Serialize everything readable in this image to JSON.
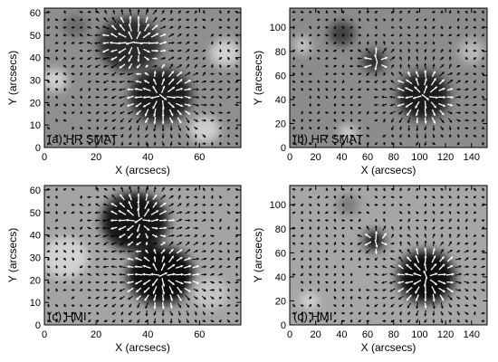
{
  "figure": {
    "panels": [
      {
        "id": "a",
        "label": "(a) HR SMAT",
        "xlabel": "X (arcsecs)",
        "ylabel": "Y (arcsecs)",
        "xlim": [
          0,
          76
        ],
        "ylim": [
          0,
          62
        ],
        "xticks": [
          0,
          20,
          40,
          60
        ],
        "yticks": [
          0,
          10,
          20,
          30,
          40,
          50,
          60
        ],
        "background": "#8f8f8f",
        "blobs": [
          {
            "x": 45,
            "y": 23,
            "r": 12,
            "tone": "#1e1e1e"
          },
          {
            "x": 33,
            "y": 46,
            "r": 12,
            "tone": "#2a2a2a"
          },
          {
            "x": 62,
            "y": 8,
            "r": 6,
            "tone": "#cfcfcf"
          },
          {
            "x": 70,
            "y": 42,
            "r": 6,
            "tone": "#d0d0d0"
          },
          {
            "x": 12,
            "y": 54,
            "r": 5,
            "tone": "#6a6a6a"
          },
          {
            "x": 4,
            "y": 30,
            "r": 5,
            "tone": "#d0d0d0"
          }
        ],
        "vector_sources": [
          {
            "x": 45,
            "y": 23,
            "r": 12
          },
          {
            "x": 35,
            "y": 47,
            "r": 11
          }
        ]
      },
      {
        "id": "b",
        "label": "(b) HR SMAT",
        "xlabel": "X (arcsecs)",
        "ylabel": "Y (arcsecs)",
        "xlim": [
          0,
          152
        ],
        "ylim": [
          0,
          116
        ],
        "xticks": [
          0,
          20,
          40,
          60,
          80,
          100,
          120,
          140
        ],
        "yticks": [
          0,
          20,
          40,
          60,
          80,
          100
        ],
        "background": "#8c8c8c",
        "blobs": [
          {
            "x": 103,
            "y": 43,
            "r": 20,
            "tone": "#1c1c1c"
          },
          {
            "x": 65,
            "y": 72,
            "r": 9,
            "tone": "#2e2e2e"
          },
          {
            "x": 40,
            "y": 95,
            "r": 10,
            "tone": "#404040"
          },
          {
            "x": 45,
            "y": 12,
            "r": 7,
            "tone": "#cdcdcd"
          },
          {
            "x": 140,
            "y": 80,
            "r": 10,
            "tone": "#b8b8b8"
          },
          {
            "x": 10,
            "y": 85,
            "r": 7,
            "tone": "#c8c8c8"
          }
        ],
        "vector_sources": [
          {
            "x": 103,
            "y": 43,
            "r": 20
          },
          {
            "x": 67,
            "y": 72,
            "r": 9
          }
        ]
      },
      {
        "id": "c",
        "label": "(c) HMI",
        "xlabel": "X (arcsecs)",
        "ylabel": "Y (arcsecs)",
        "xlim": [
          0,
          76
        ],
        "ylim": [
          0,
          62
        ],
        "xticks": [
          0,
          20,
          40,
          60
        ],
        "yticks": [
          0,
          10,
          20,
          30,
          40,
          50,
          60
        ],
        "background": "#a4a4a4",
        "blobs": [
          {
            "x": 45,
            "y": 22,
            "r": 13,
            "tone": "#0e0e0e"
          },
          {
            "x": 35,
            "y": 46,
            "r": 13,
            "tone": "#141414"
          },
          {
            "x": 8,
            "y": 30,
            "r": 9,
            "tone": "#d2d2d2"
          },
          {
            "x": 64,
            "y": 14,
            "r": 7,
            "tone": "#c4c4c4"
          }
        ],
        "vector_sources": [
          {
            "x": 45,
            "y": 22,
            "r": 13
          },
          {
            "x": 37,
            "y": 47,
            "r": 11
          }
        ]
      },
      {
        "id": "d",
        "label": "(d) HMI",
        "xlabel": "X (arcsecs)",
        "ylabel": "Y (arcsecs)",
        "xlim": [
          0,
          152
        ],
        "ylim": [
          0,
          116
        ],
        "xticks": [
          0,
          20,
          40,
          60,
          80,
          100,
          120,
          140
        ],
        "yticks": [
          0,
          20,
          40,
          60,
          80,
          100
        ],
        "background": "#a6a6a6",
        "blobs": [
          {
            "x": 105,
            "y": 40,
            "r": 22,
            "tone": "#0c0c0c"
          },
          {
            "x": 65,
            "y": 70,
            "r": 8,
            "tone": "#121212"
          },
          {
            "x": 45,
            "y": 100,
            "r": 8,
            "tone": "#7a7a7a"
          },
          {
            "x": 15,
            "y": 20,
            "r": 7,
            "tone": "#d4d4d4"
          }
        ],
        "vector_sources": [
          {
            "x": 105,
            "y": 40,
            "r": 22
          },
          {
            "x": 66,
            "y": 70,
            "r": 8
          }
        ]
      }
    ]
  }
}
